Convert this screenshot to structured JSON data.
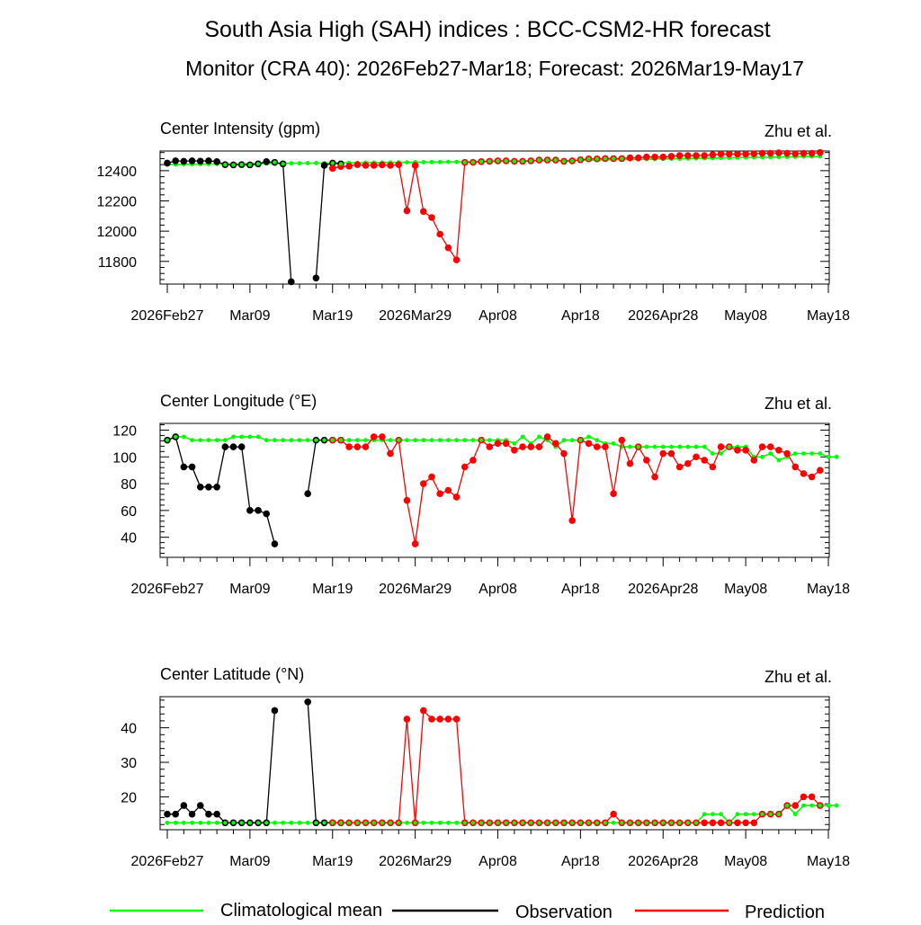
{
  "title": "South Asia High (SAH) indices : BCC-CSM2-HR forecast",
  "subtitle": "Monitor (CRA 40): 2026Feb27-Mar18; Forecast: 2026Mar19-May17",
  "attribution": "Zhu et al.",
  "x_tick_labels": [
    "2026Feb27",
    "Mar09",
    "Mar19",
    "2026Mar29",
    "Apr08",
    "Apr18",
    "2026Apr28",
    "May08",
    "May18"
  ],
  "x_tick_days": [
    0,
    10,
    20,
    30,
    40,
    50,
    60,
    70,
    80
  ],
  "legend": {
    "clim_label": "Climatological mean",
    "obs_label": "Observation",
    "pred_label": "Prediction"
  },
  "colors": {
    "clim": "#00ff00",
    "obs": "#000000",
    "pred": "#ff0000"
  },
  "chart_data": [
    {
      "type": "line",
      "title": "Center Intensity (gpm)",
      "xlabel": "",
      "ylabel": "Center Intensity (gpm)",
      "x_range": [
        0,
        80
      ],
      "ylim": [
        11650,
        12530
      ],
      "y_ticks": [
        11800,
        12000,
        12200,
        12400
      ],
      "series": [
        {
          "name": "Climatological mean",
          "start_day": 0,
          "values": [
            12440,
            12441,
            12442,
            12443,
            12443,
            12444,
            12444,
            12445,
            12445,
            12446,
            12446,
            12447,
            12447,
            12448,
            12448,
            12449,
            12449,
            12450,
            12450,
            12450,
            12451,
            12451,
            12452,
            12452,
            12453,
            12453,
            12454,
            12454,
            12455,
            12455,
            12456,
            12456,
            12457,
            12457,
            12458,
            12458,
            12459,
            12459,
            12460,
            12461,
            12462,
            12462,
            12463,
            12464,
            12465,
            12465,
            12466,
            12467,
            12468,
            12468,
            12469,
            12470,
            12471,
            12472,
            12473,
            12473,
            12474,
            12475,
            12476,
            12477,
            12478,
            12478,
            12479,
            12480,
            12481,
            12482,
            12483,
            12484,
            12485,
            12486,
            12487,
            12488,
            12489,
            12489,
            12490,
            12491,
            12492,
            12493,
            12493,
            12494
          ]
        },
        {
          "name": "Observation",
          "start_day": 0,
          "values": [
            12450,
            12465,
            12462,
            12465,
            12463,
            12465,
            12460,
            12440,
            12438,
            12440,
            12438,
            12445,
            12460,
            12455,
            12445,
            11665,
            null,
            null,
            11690,
            12435,
            12450,
            12445
          ]
        },
        {
          "name": "Prediction",
          "start_day": 20,
          "values": [
            12415,
            12428,
            12430,
            12440,
            12435,
            12435,
            12438,
            12435,
            12440,
            12135,
            12435,
            12130,
            12090,
            11980,
            11890,
            11810,
            12455,
            12455,
            12460,
            12462,
            12465,
            12465,
            12462,
            12462,
            12465,
            12470,
            12470,
            12470,
            12462,
            12465,
            12472,
            12478,
            12478,
            12480,
            12480,
            12480,
            12485,
            12485,
            12490,
            12490,
            12490,
            12495,
            12500,
            12500,
            12500,
            12500,
            12505,
            12510,
            12510,
            12510,
            12510,
            12512,
            12515,
            12515,
            12518,
            12515,
            12512,
            12515,
            12515,
            12520
          ]
        }
      ]
    },
    {
      "type": "line",
      "title": "Center Longitude (°E)",
      "xlabel": "",
      "ylabel": "Center Longitude (°E)",
      "x_range": [
        0,
        80
      ],
      "ylim": [
        25,
        125
      ],
      "y_ticks": [
        40,
        60,
        80,
        100,
        120
      ],
      "series": [
        {
          "name": "Climatological mean",
          "start_day": 0,
          "values": [
            112.5,
            115,
            115,
            112.5,
            112.5,
            112.5,
            112.5,
            112.5,
            115,
            115,
            115,
            115,
            112.5,
            112.5,
            112.5,
            112.5,
            112.5,
            112.5,
            112.5,
            112.5,
            112.5,
            112.5,
            112.5,
            112.5,
            112.5,
            112.5,
            112.5,
            112.5,
            112.5,
            112.5,
            112.5,
            112.5,
            112.5,
            112.5,
            112.5,
            112.5,
            112.5,
            112.5,
            112.5,
            112.5,
            112.5,
            112.5,
            110,
            115,
            110,
            115,
            112.5,
            107.5,
            112.5,
            112.5,
            112.5,
            115,
            112.5,
            110,
            110,
            107.5,
            107.5,
            107.5,
            107.5,
            107.5,
            107.5,
            107.5,
            107.5,
            107.5,
            107.5,
            107.5,
            102.5,
            102.5,
            107.5,
            107.5,
            107.5,
            100,
            100,
            102.5,
            97.5,
            100,
            102.5,
            102.5,
            102.5,
            102.5,
            100,
            100
          ]
        },
        {
          "name": "Observation",
          "start_day": 0,
          "values": [
            112.5,
            115,
            92.5,
            92.5,
            77.5,
            77.5,
            77.5,
            107.5,
            107.5,
            107.5,
            60,
            60,
            57.5,
            35,
            null,
            null,
            null,
            72.5,
            112.5,
            112.5,
            112.5,
            112.5
          ]
        },
        {
          "name": "Prediction",
          "start_day": 20,
          "values": [
            112.5,
            112.5,
            107.5,
            107.5,
            107.5,
            115,
            115,
            102.5,
            112.5,
            67.5,
            35,
            80,
            85,
            72.5,
            75,
            70,
            92.5,
            97.5,
            112.5,
            107.5,
            110,
            110,
            105,
            107.5,
            107.5,
            107.5,
            115,
            110,
            102.5,
            52.5,
            112.5,
            110,
            107.5,
            107.5,
            72.5,
            112.5,
            95,
            107.5,
            97.5,
            85,
            102.5,
            102.5,
            92.5,
            95,
            100,
            97.5,
            92.5,
            107.5,
            107.5,
            105,
            105,
            97.5,
            107.5,
            107.5,
            105,
            102.5,
            92.5,
            87.5,
            85,
            90
          ]
        }
      ]
    },
    {
      "type": "line",
      "title": "Center Latitude (°N)",
      "xlabel": "",
      "ylabel": "Center Latitude (°N)",
      "x_range": [
        0,
        80
      ],
      "ylim": [
        10.5,
        49
      ],
      "y_ticks": [
        20,
        30,
        40
      ],
      "series": [
        {
          "name": "Climatological mean",
          "start_day": 0,
          "values": [
            12.5,
            12.5,
            12.5,
            12.5,
            12.5,
            12.5,
            12.5,
            12.5,
            12.5,
            12.5,
            12.5,
            12.5,
            12.5,
            12.5,
            12.5,
            12.5,
            12.5,
            12.5,
            12.5,
            12.5,
            12.5,
            12.5,
            12.5,
            12.5,
            12.5,
            12.5,
            12.5,
            12.5,
            12.5,
            12.5,
            12.5,
            12.5,
            12.5,
            12.5,
            12.5,
            12.5,
            12.5,
            12.5,
            12.5,
            12.5,
            12.5,
            12.5,
            12.5,
            12.5,
            12.5,
            12.5,
            12.5,
            12.5,
            12.5,
            12.5,
            12.5,
            12.5,
            12.5,
            12.5,
            12.5,
            12.5,
            12.5,
            12.5,
            12.5,
            12.5,
            12.5,
            12.5,
            12.5,
            12.5,
            12.5,
            15,
            15,
            15,
            12.5,
            15,
            15,
            15,
            15,
            15,
            15,
            17.5,
            15,
            17.5,
            17.5,
            17.5,
            17.5,
            17.5
          ]
        },
        {
          "name": "Observation",
          "start_day": 0,
          "values": [
            15,
            15,
            17.5,
            15,
            17.5,
            15,
            15,
            12.5,
            12.5,
            12.5,
            12.5,
            12.5,
            12.5,
            45,
            null,
            null,
            null,
            47.5,
            12.5,
            12.5,
            12.5,
            12.5
          ]
        },
        {
          "name": "Prediction",
          "start_day": 20,
          "values": [
            12.5,
            12.5,
            12.5,
            12.5,
            12.5,
            12.5,
            12.5,
            12.5,
            12.5,
            42.5,
            12.5,
            45,
            42.5,
            42.5,
            42.5,
            42.5,
            12.5,
            12.5,
            12.5,
            12.5,
            12.5,
            12.5,
            12.5,
            12.5,
            12.5,
            12.5,
            12.5,
            12.5,
            12.5,
            12.5,
            12.5,
            12.5,
            12.5,
            12.5,
            15,
            12.5,
            12.5,
            12.5,
            12.5,
            12.5,
            12.5,
            12.5,
            12.5,
            12.5,
            12.5,
            12.5,
            12.5,
            12.5,
            12.5,
            12.5,
            12.5,
            12.5,
            15,
            15,
            15,
            17.5,
            17.5,
            20,
            20,
            17.5
          ]
        }
      ]
    }
  ]
}
